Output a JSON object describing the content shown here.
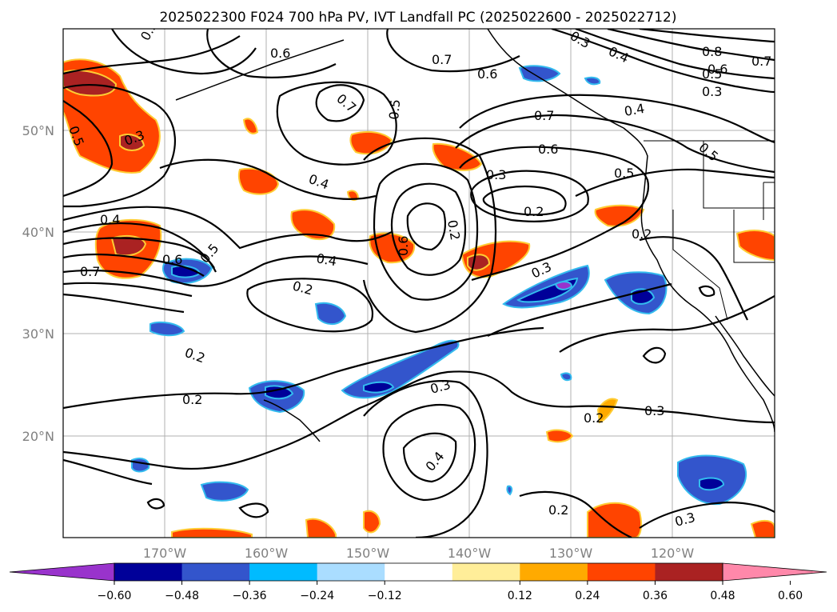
{
  "title": "2025022300 F024 700 hPa PV, IVT Landfall PC (2025022600 - 2025022712)",
  "lat_labels": [
    "50°N",
    "40°N",
    "30°N",
    "20°N"
  ],
  "lon_labels": [
    "170°W",
    "160°W",
    "150°W",
    "140°W",
    "130°W",
    "120°W"
  ],
  "colorbar": {
    "colors": [
      "#9933cc",
      "#000099",
      "#3355cc",
      "#00bbff",
      "#aaddff",
      "#ffffff",
      "#ffee99",
      "#ffaa00",
      "#ff4400",
      "#aa2222",
      "#ff88aa"
    ],
    "tick_labels": [
      "−0.60",
      "−0.48",
      "−0.36",
      "−0.24",
      "−0.12",
      "0.12",
      "0.24",
      "0.36",
      "0.48",
      "0.60"
    ]
  },
  "contour_labels": [
    "0.5",
    "0.6",
    "0.7",
    "0.6",
    "0.3",
    "0.4",
    "0.8",
    "0.6",
    "0.5",
    "0.7",
    "0.3",
    "0.7",
    "0.5",
    "0.4",
    "0.7",
    "0.6",
    "0.3",
    "0.5",
    "0.5",
    "0.4",
    "0.2",
    "0.3",
    "0.4",
    "0.6",
    "0.5",
    "0.7",
    "0.4",
    "0.2",
    "0.2",
    "0.2",
    "0.3",
    "0.4",
    "0.2",
    "0.3",
    "0.2",
    "0.3",
    "0.2",
    "0.2",
    "0.6",
    "0.5",
    "0.3"
  ]
}
